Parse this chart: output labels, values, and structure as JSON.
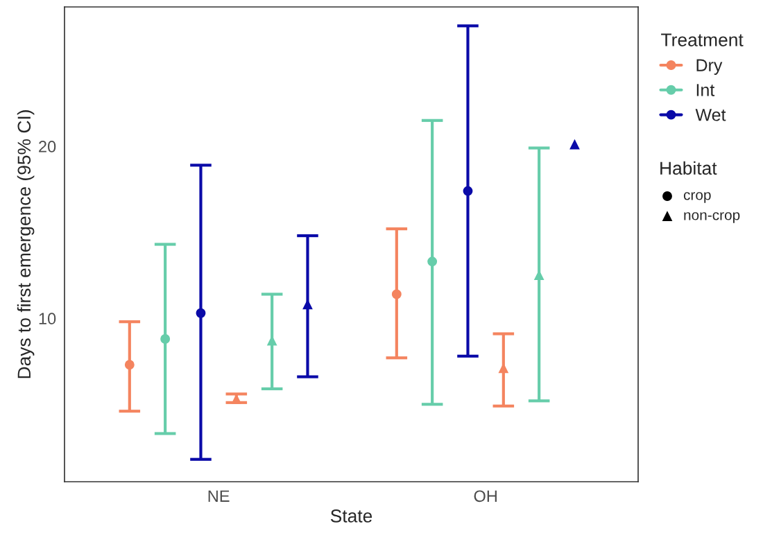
{
  "chart_data": {
    "type": "scatter",
    "xlabel": "State",
    "ylabel": "Days to first emergence (95% CI)",
    "categories": [
      "NE",
      "OH"
    ],
    "ylim": [
      0.5,
      28.1
    ],
    "yticks": [
      10,
      20
    ],
    "grid": false,
    "legend": "right",
    "legend_title": "Treatment",
    "annotations": [
      "Habitat",
      "crop",
      "non-crop"
    ],
    "series": [
      {
        "name": "Dry",
        "marker": "circle",
        "color": "#f4845f",
        "values": [
          7.3,
          11.4
        ],
        "errors": [
          [
            4.6,
            9.8
          ],
          [
            7.7,
            15.2
          ]
        ]
      },
      {
        "name": "Int",
        "marker": "circle",
        "color": "#66cdaa",
        "values": [
          8.8,
          13.3
        ],
        "errors": [
          [
            3.3,
            14.3
          ],
          [
            5.0,
            21.5
          ]
        ]
      },
      {
        "name": "Wet",
        "marker": "circle",
        "color": "#0a0aa8",
        "values": [
          10.3,
          17.4
        ],
        "errors": [
          [
            1.8,
            18.9
          ],
          [
            7.8,
            27.0
          ]
        ]
      },
      {
        "marker": "triangle",
        "color": "#f4845f",
        "values": [
          5.3,
          7.1
        ],
        "errors": [
          [
            5.1,
            5.6
          ],
          [
            4.9,
            9.1
          ]
        ]
      },
      {
        "marker": "triangle",
        "color": "#66cdaa",
        "values": [
          8.7,
          12.5
        ],
        "errors": [
          [
            5.9,
            11.4
          ],
          [
            5.2,
            19.9
          ]
        ]
      },
      {
        "marker": "triangle",
        "color": "#0a0aa8",
        "values": [
          10.8,
          20.1
        ],
        "errors": [
          [
            6.6,
            14.8
          ],
          null
        ]
      }
    ]
  }
}
